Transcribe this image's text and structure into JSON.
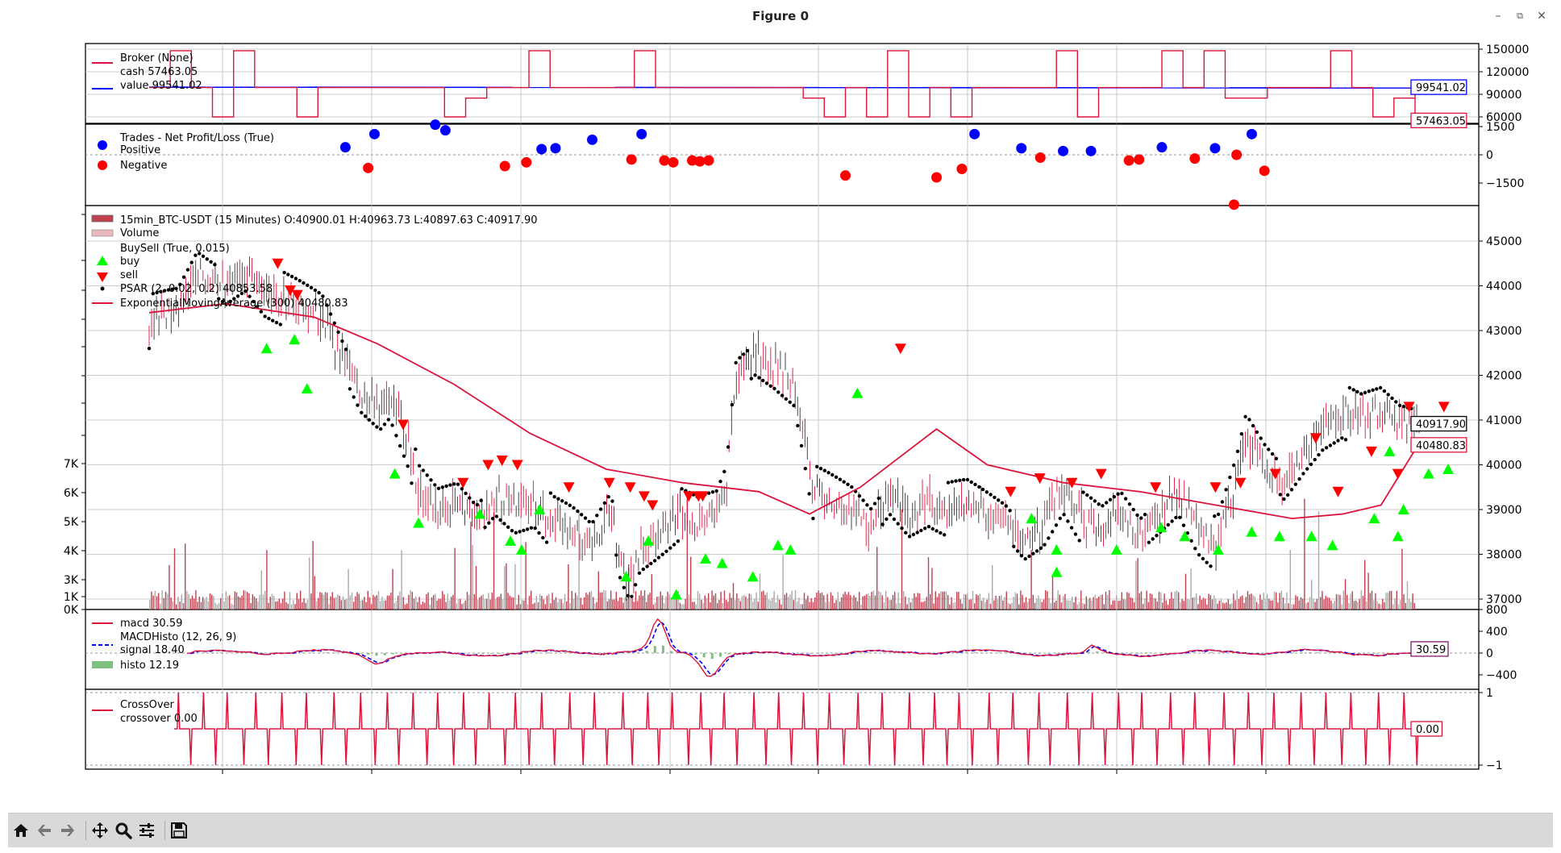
{
  "window": {
    "title": "Figure 0",
    "buttons": [
      "minimize",
      "maximize",
      "close"
    ]
  },
  "toolbar": {
    "items": [
      "home-icon",
      "back-icon",
      "forward-icon",
      "pan-icon",
      "zoom-icon",
      "configure-subplots-icon",
      "save-icon"
    ]
  },
  "colors": {
    "red": "#dc143c",
    "blue": "#0000ff",
    "buy": "#00ff00",
    "sell": "#ff0000",
    "histo": "#7fbf7f",
    "grid": "#bbbbbb"
  },
  "chart_data": [
    {
      "type": "line",
      "panel": "broker",
      "legend": [
        "Broker (None)",
        "cash 57463.05",
        "value 99541.02"
      ],
      "series": [
        {
          "name": "cash",
          "last_value_label": "57463.05"
        },
        {
          "name": "value",
          "last_value_label": "99541.02"
        }
      ],
      "ytick_labels": [
        "150000",
        "120000",
        "90000",
        "60000"
      ]
    },
    {
      "type": "scatter",
      "panel": "trades",
      "legend": [
        "Trades - Net Profit/Loss (True)",
        "Positive",
        "Negative"
      ],
      "ytick_labels": [
        "1500",
        "0",
        "−1500"
      ],
      "positive": [
        [
          0.155,
          400
        ],
        [
          0.178,
          1100
        ],
        [
          0.226,
          1600
        ],
        [
          0.234,
          1300
        ],
        [
          0.31,
          300
        ],
        [
          0.321,
          350
        ],
        [
          0.35,
          800
        ],
        [
          0.389,
          1100
        ],
        [
          0.652,
          1100
        ],
        [
          0.689,
          350
        ],
        [
          0.722,
          200
        ],
        [
          0.744,
          200
        ],
        [
          0.8,
          400
        ],
        [
          0.842,
          350
        ],
        [
          0.871,
          1100
        ]
      ],
      "negative": [
        [
          0.173,
          -700
        ],
        [
          0.281,
          -600
        ],
        [
          0.298,
          -400
        ],
        [
          0.381,
          -250
        ],
        [
          0.407,
          -300
        ],
        [
          0.414,
          -400
        ],
        [
          0.429,
          -300
        ],
        [
          0.435,
          -350
        ],
        [
          0.442,
          -300
        ],
        [
          0.55,
          -1100
        ],
        [
          0.622,
          -1200
        ],
        [
          0.642,
          -750
        ],
        [
          0.704,
          -150
        ],
        [
          0.774,
          -300
        ],
        [
          0.782,
          -250
        ],
        [
          0.826,
          -200
        ],
        [
          0.857,
          -2650
        ],
        [
          0.859,
          0
        ],
        [
          0.881,
          -850
        ]
      ]
    },
    {
      "type": "candlestick",
      "panel": "price",
      "legend": [
        "15min_BTC-USDT (15 Minutes) O:40900.01 H:40963.73 L:40897.63 C:40917.90",
        "Volume",
        "BuySell (True, 0.015)",
        "buy",
        "sell",
        "PSAR (2, 0.02, 0.2) 40853.58",
        "ExponentialMovingAverage (300) 40480.83"
      ],
      "ytick_labels": [
        "45000",
        "44000",
        "43000",
        "42000",
        "41000",
        "40000",
        "39000",
        "38000",
        "37000"
      ],
      "volume_tick_labels": [
        "7K",
        "6K",
        "5K",
        "4K",
        "3K",
        "1K",
        "0K"
      ],
      "last_close_label": "40917.90",
      "ema_last_label": "40480.83",
      "ema": [
        [
          0.0,
          43400
        ],
        [
          0.06,
          43600
        ],
        [
          0.13,
          43300
        ],
        [
          0.18,
          42700
        ],
        [
          0.24,
          41800
        ],
        [
          0.3,
          40700
        ],
        [
          0.36,
          39900
        ],
        [
          0.42,
          39600
        ],
        [
          0.48,
          39400
        ],
        [
          0.52,
          38900
        ],
        [
          0.56,
          39500
        ],
        [
          0.62,
          40800
        ],
        [
          0.66,
          40000
        ],
        [
          0.72,
          39600
        ],
        [
          0.78,
          39400
        ],
        [
          0.84,
          39100
        ],
        [
          0.9,
          38800
        ],
        [
          0.94,
          38900
        ],
        [
          0.97,
          39100
        ],
        [
          1.0,
          40480
        ]
      ],
      "price_path": [
        [
          0.0,
          43200
        ],
        [
          0.03,
          43400
        ],
        [
          0.05,
          44300
        ],
        [
          0.08,
          44000
        ],
        [
          0.1,
          44400
        ],
        [
          0.12,
          43900
        ],
        [
          0.14,
          43700
        ],
        [
          0.16,
          43500
        ],
        [
          0.18,
          43300
        ],
        [
          0.2,
          42400
        ],
        [
          0.22,
          41600
        ],
        [
          0.24,
          41300
        ],
        [
          0.25,
          41600
        ],
        [
          0.27,
          40500
        ],
        [
          0.28,
          39400
        ],
        [
          0.3,
          38900
        ],
        [
          0.32,
          39100
        ],
        [
          0.34,
          38700
        ],
        [
          0.36,
          39300
        ],
        [
          0.38,
          39000
        ],
        [
          0.4,
          39200
        ],
        [
          0.42,
          38700
        ],
        [
          0.44,
          38500
        ],
        [
          0.46,
          38200
        ],
        [
          0.48,
          39000
        ],
        [
          0.49,
          37800
        ],
        [
          0.5,
          37400
        ],
        [
          0.51,
          38100
        ],
        [
          0.53,
          38500
        ],
        [
          0.55,
          38900
        ],
        [
          0.57,
          38700
        ],
        [
          0.59,
          38900
        ],
        [
          0.6,
          39500
        ],
        [
          0.61,
          41900
        ],
        [
          0.63,
          42400
        ],
        [
          0.65,
          42200
        ],
        [
          0.67,
          41900
        ],
        [
          0.68,
          40800
        ],
        [
          0.69,
          39400
        ],
        [
          0.71,
          39200
        ],
        [
          0.73,
          39000
        ],
        [
          0.75,
          38600
        ],
        [
          0.77,
          39300
        ],
        [
          0.79,
          38900
        ],
        [
          0.81,
          39200
        ],
        [
          0.83,
          39000
        ],
        [
          0.85,
          39100
        ],
        [
          0.87,
          38900
        ],
        [
          0.89,
          38700
        ],
        [
          0.91,
          38300
        ],
        [
          0.93,
          38700
        ],
        [
          0.95,
          39500
        ],
        [
          0.97,
          38800
        ],
        [
          0.99,
          38500
        ],
        [
          1.01,
          38900
        ],
        [
          1.03,
          38400
        ],
        [
          1.05,
          38900
        ],
        [
          1.07,
          39400
        ],
        [
          1.09,
          38600
        ],
        [
          1.11,
          38200
        ],
        [
          1.13,
          39600
        ],
        [
          1.14,
          40600
        ],
        [
          1.16,
          40000
        ],
        [
          1.18,
          39600
        ],
        [
          1.2,
          40300
        ],
        [
          1.22,
          40900
        ],
        [
          1.24,
          41200
        ],
        [
          1.26,
          41000
        ],
        [
          1.28,
          41200
        ],
        [
          1.3,
          40900
        ],
        [
          1.32,
          40900
        ]
      ],
      "buy": [
        [
          0.13,
          42600
        ],
        [
          0.15,
          42800
        ],
        [
          0.159,
          41700
        ],
        [
          0.222,
          39800
        ],
        [
          0.239,
          38700
        ],
        [
          0.283,
          38900
        ],
        [
          0.305,
          38300
        ],
        [
          0.313,
          38100
        ],
        [
          0.326,
          39000
        ],
        [
          0.388,
          37500
        ],
        [
          0.404,
          38300
        ],
        [
          0.424,
          37100
        ],
        [
          0.445,
          37900
        ],
        [
          0.457,
          37800
        ],
        [
          0.479,
          37500
        ],
        [
          0.497,
          38200
        ],
        [
          0.506,
          38100
        ],
        [
          0.554,
          41600
        ],
        [
          0.679,
          38800
        ],
        [
          0.697,
          37600
        ],
        [
          0.697,
          38100
        ],
        [
          0.74,
          38100
        ],
        [
          0.772,
          38600
        ],
        [
          0.789,
          38400
        ],
        [
          0.813,
          38100
        ],
        [
          0.837,
          38500
        ],
        [
          0.857,
          38400
        ],
        [
          0.88,
          38400
        ],
        [
          0.895,
          38200
        ],
        [
          0.925,
          38800
        ],
        [
          0.936,
          40300
        ],
        [
          0.942,
          38400
        ],
        [
          0.946,
          39000
        ],
        [
          0.964,
          39800
        ],
        [
          0.978,
          39900
        ]
      ],
      "sell": [
        [
          0.138,
          44500
        ],
        [
          0.147,
          43900
        ],
        [
          0.152,
          43800
        ],
        [
          0.228,
          40900
        ],
        [
          0.271,
          39600
        ],
        [
          0.289,
          40000
        ],
        [
          0.299,
          40100
        ],
        [
          0.31,
          40000
        ],
        [
          0.347,
          39500
        ],
        [
          0.376,
          39600
        ],
        [
          0.391,
          39500
        ],
        [
          0.401,
          39300
        ],
        [
          0.407,
          39100
        ],
        [
          0.433,
          39300
        ],
        [
          0.44,
          39300
        ],
        [
          0.443,
          39300
        ],
        [
          0.585,
          42600
        ],
        [
          0.664,
          39400
        ],
        [
          0.685,
          39700
        ],
        [
          0.708,
          39600
        ],
        [
          0.729,
          39800
        ],
        [
          0.768,
          39500
        ],
        [
          0.811,
          39500
        ],
        [
          0.829,
          39600
        ],
        [
          0.854,
          39800
        ],
        [
          0.883,
          40600
        ],
        [
          0.899,
          39400
        ],
        [
          0.923,
          40300
        ],
        [
          0.942,
          39800
        ],
        [
          0.95,
          41300
        ],
        [
          0.975,
          41300
        ]
      ]
    },
    {
      "type": "line",
      "panel": "macd",
      "legend": [
        "macd 30.59",
        "MACDHisto (12, 26, 9)",
        "signal 18.40",
        "histo 12.19"
      ],
      "ytick_labels": [
        "800",
        "400",
        "0",
        "−400"
      ],
      "last_value_label": "30.59"
    },
    {
      "type": "line",
      "panel": "crossover",
      "legend": [
        "CrossOver",
        "crossover 0.00"
      ],
      "ytick_labels": [
        "1",
        "−1"
      ],
      "last_value_label": "0.00"
    }
  ]
}
